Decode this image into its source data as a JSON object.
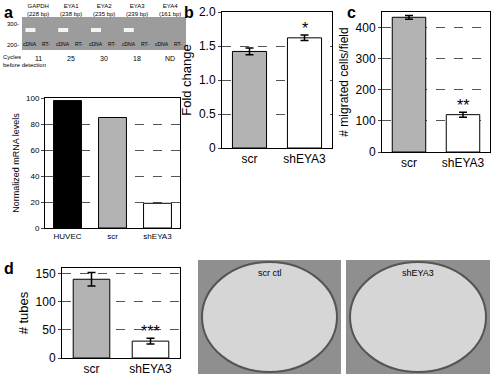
{
  "panels": [
    "a",
    "b",
    "c",
    "d"
  ],
  "gel": {
    "genes": [
      {
        "name": "GAPDH",
        "size": "(228 bp)",
        "cycles": 11
      },
      {
        "name": "EYA1",
        "size": "(238 bp)",
        "cycles": 25
      },
      {
        "name": "EYA2",
        "size": "(235 bp)",
        "cycles": 30
      },
      {
        "name": "EYA3",
        "size": "(239 bp)",
        "cycles": 18
      },
      {
        "name": "EYA4",
        "size": "(161 bp)",
        "cycles": "ND"
      }
    ],
    "lanes": [
      "cDNA",
      "RT-"
    ],
    "markers": [
      "300-",
      "200-"
    ],
    "cycles_label": [
      "Cycles",
      "before detection"
    ]
  },
  "images": [
    "scr ctl",
    "shEYA3"
  ],
  "chart_data": [
    {
      "type": "bar",
      "categories": [
        "HUVEC",
        "scr",
        "shEYA3"
      ],
      "values": [
        98,
        85,
        19
      ],
      "colors": [
        "#000000",
        "#b3b3b3",
        "#ffffff"
      ],
      "ylabel": "Normalized mRNA levels",
      "ylim": [
        0,
        100
      ],
      "yticks": [
        0,
        20,
        40,
        60,
        80,
        100
      ],
      "grid": true
    },
    {
      "type": "bar",
      "categories": [
        "scr",
        "shEYA3"
      ],
      "values": [
        1.42,
        1.62
      ],
      "errors": [
        0.05,
        0.04
      ],
      "colors": [
        "#b3b3b3",
        "#ffffff"
      ],
      "ylabel": "Fold change",
      "ylim": [
        0,
        2
      ],
      "yticks": [
        0,
        0.5,
        {
          "value": 1,
          "label": "1.0"
        },
        1.5,
        {
          "value": 2,
          "label": "2.0"
        }
      ],
      "grid": true,
      "annotations": [
        {
          "category": "shEYA3",
          "text": "*"
        }
      ]
    },
    {
      "type": "bar",
      "categories": [
        "scr",
        "shEYA3"
      ],
      "values": [
        433,
        120
      ],
      "errors": [
        6,
        8
      ],
      "colors": [
        "#b3b3b3",
        "#ffffff"
      ],
      "ylabel": "# migrated cells/field",
      "ylim": [
        0,
        450
      ],
      "yticks": [
        0,
        100,
        200,
        300,
        400
      ],
      "grid": true,
      "annotations": [
        {
          "category": "shEYA3",
          "text": "**"
        }
      ]
    },
    {
      "type": "bar",
      "categories": [
        "scr",
        "shEYA3"
      ],
      "values": [
        140,
        30
      ],
      "errors": [
        12,
        5
      ],
      "colors": [
        "#b3b3b3",
        "#ffffff"
      ],
      "ylabel": "# tubes",
      "ylim": [
        0,
        160
      ],
      "yticks": [
        0,
        50,
        100,
        150
      ],
      "grid": true,
      "annotations": [
        {
          "category": "shEYA3",
          "text": "***"
        }
      ]
    }
  ]
}
